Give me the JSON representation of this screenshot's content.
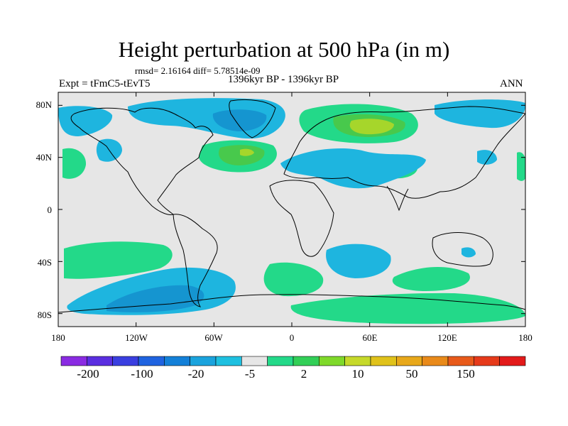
{
  "title": "Height perturbation at 500 hPa (in m)",
  "stats": "rmsd= 2.16164 diff= 5.78514e-09",
  "experiment": "Expt = tFmC5-tEvT5",
  "period": "1396kyr BP - 1396kyr BP",
  "season": "ANN",
  "colors": {
    "background": "#e6e6e6",
    "pos_light": "#23d989",
    "pos_mid": "#48c94c",
    "pos_strong": "#a6d62b",
    "neg_light": "#1eb5df",
    "neg_mid": "#1595d0",
    "coast": "#000000"
  },
  "chart_data": {
    "type": "contour_map",
    "field": "500 hPa geopotential height perturbation",
    "units": "m",
    "x_axis": {
      "range": [
        -180,
        180
      ],
      "tick_values": [
        -180,
        -120,
        -60,
        0,
        60,
        120,
        180
      ],
      "tick_labels": [
        "180",
        "120W",
        "60W",
        "0",
        "60E",
        "120E",
        "180"
      ]
    },
    "y_axis": {
      "range": [
        -90,
        90
      ],
      "tick_values": [
        80,
        40,
        0,
        -40,
        -80
      ],
      "tick_labels": [
        "80N",
        "40N",
        "0",
        "40S",
        "80S"
      ]
    },
    "colorbar": {
      "labels": [
        "-200",
        "-100",
        "-20",
        "-5",
        "2",
        "10",
        "50",
        "150"
      ],
      "colors": [
        "#8a2be2",
        "#5a2ee0",
        "#3a3fe0",
        "#1f63e0",
        "#1380d8",
        "#1aa3dd",
        "#1ec0e0",
        "#e6e6e6",
        "#23d989",
        "#32cf57",
        "#7fd92a",
        "#c6d92a",
        "#e0c21a",
        "#e8a81a",
        "#e98a1a",
        "#e85a1a",
        "#e63a1a",
        "#e31a1a"
      ]
    }
  }
}
